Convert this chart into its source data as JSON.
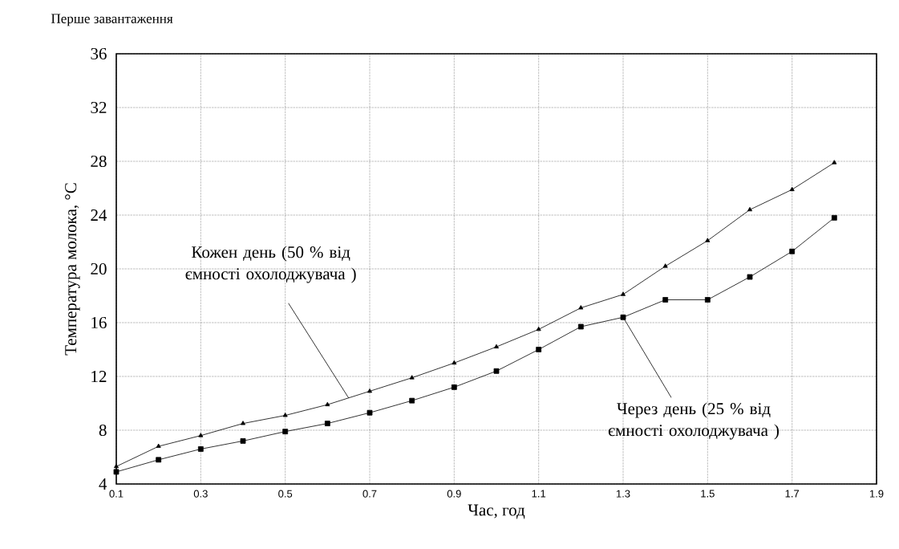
{
  "chart_data": {
    "type": "line",
    "title": "Перше завантаження",
    "xlabel": "Час, год",
    "ylabel": "Температура молока, °C",
    "x": [
      0.1,
      0.2,
      0.3,
      0.4,
      0.5,
      0.6,
      0.7,
      0.8,
      0.9,
      1.0,
      1.1,
      1.2,
      1.3,
      1.4,
      1.5,
      1.6,
      1.7,
      1.8
    ],
    "series": [
      {
        "color": "#000000",
        "marker": "triangle",
        "values": [
          5.3,
          6.8,
          7.6,
          8.5,
          9.1,
          9.9,
          10.9,
          11.9,
          13.0,
          14.2,
          15.5,
          17.1,
          18.1,
          20.2,
          22.1,
          24.4,
          25.9,
          27.9
        ]
      },
      {
        "color": "#000000",
        "marker": "square",
        "values": [
          4.9,
          5.8,
          6.6,
          7.2,
          7.9,
          8.5,
          9.3,
          10.2,
          11.2,
          12.4,
          14.0,
          15.7,
          16.4,
          17.7,
          17.7,
          19.4,
          21.3,
          23.8
        ]
      }
    ],
    "xlim": [
      0.1,
      1.9
    ],
    "ylim": [
      4,
      36
    ],
    "xticks": [
      0.1,
      0.3,
      0.5,
      0.7,
      0.9,
      1.1,
      1.3,
      1.5,
      1.7,
      1.9
    ],
    "yticks": [
      4,
      8,
      12,
      16,
      20,
      24,
      28,
      32,
      36
    ],
    "grid": true,
    "line_style": "solid",
    "annotations": [
      {
        "text": "Кожен день (50 % від ємності охолоджувача )",
        "x": 0.65,
        "y": 10.4
      },
      {
        "text": "Через день (25 % від ємності охолоджувача )",
        "x": 1.3,
        "y": 16.4
      }
    ]
  }
}
